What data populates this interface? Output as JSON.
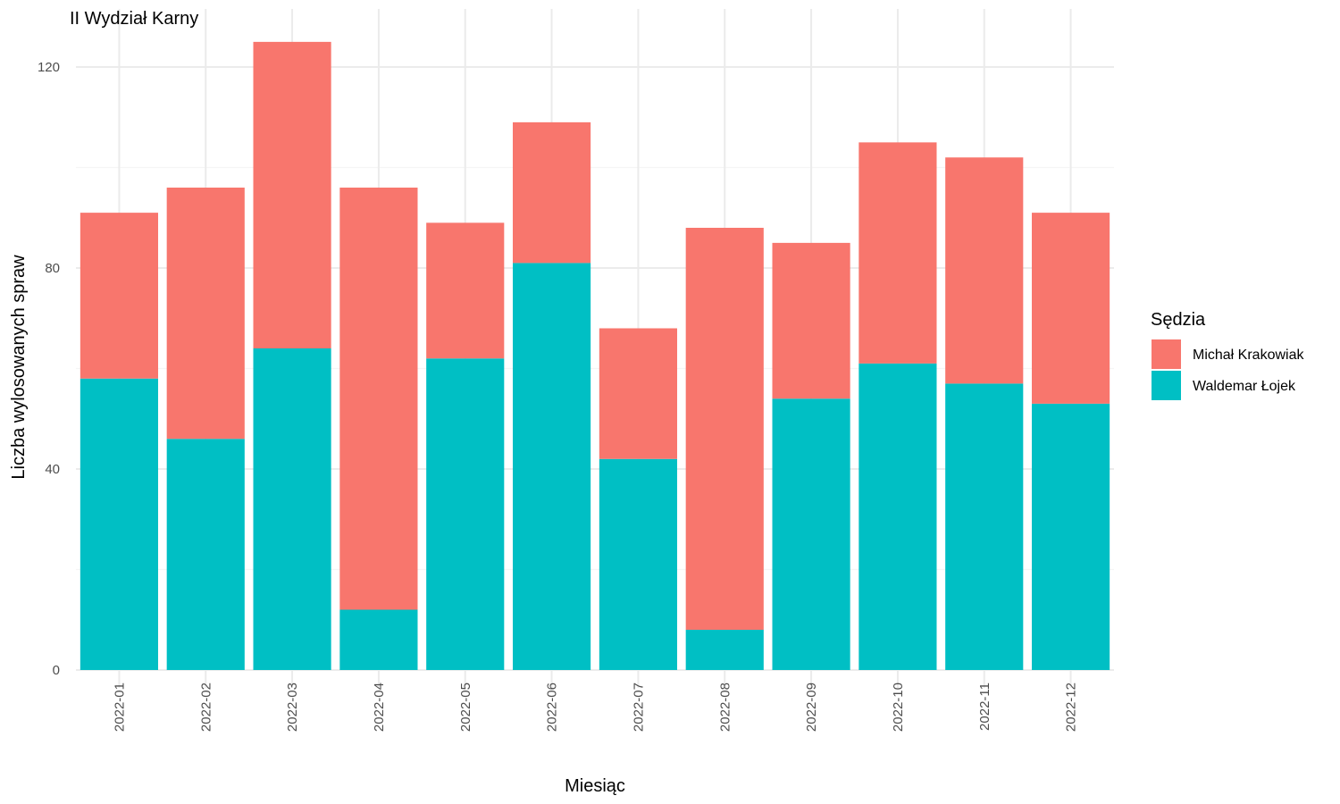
{
  "chart_data": {
    "type": "bar",
    "stacked": true,
    "title": "II Wydział Karny",
    "xlabel": "Miesiąc",
    "ylabel": "Liczba wylosowanych spraw",
    "ylim": [
      0,
      128
    ],
    "yticks": [
      0,
      40,
      80,
      120
    ],
    "grid": true,
    "legend": {
      "title": "Sędzia",
      "placement": "right"
    },
    "categories": [
      "2022-01",
      "2022-02",
      "2022-03",
      "2022-04",
      "2022-05",
      "2022-06",
      "2022-07",
      "2022-08",
      "2022-09",
      "2022-10",
      "2022-11",
      "2022-12"
    ],
    "series": [
      {
        "name": "Waldemar Łojek",
        "color": "#00BFC4",
        "values": [
          58,
          46,
          64,
          12,
          62,
          81,
          42,
          8,
          54,
          61,
          57,
          53
        ]
      },
      {
        "name": "Michał Krakowiak",
        "color": "#F8766D",
        "values": [
          33,
          50,
          61,
          84,
          27,
          28,
          26,
          80,
          31,
          44,
          45,
          38
        ]
      }
    ],
    "legend_order": [
      "Michał Krakowiak",
      "Waldemar Łojek"
    ]
  }
}
